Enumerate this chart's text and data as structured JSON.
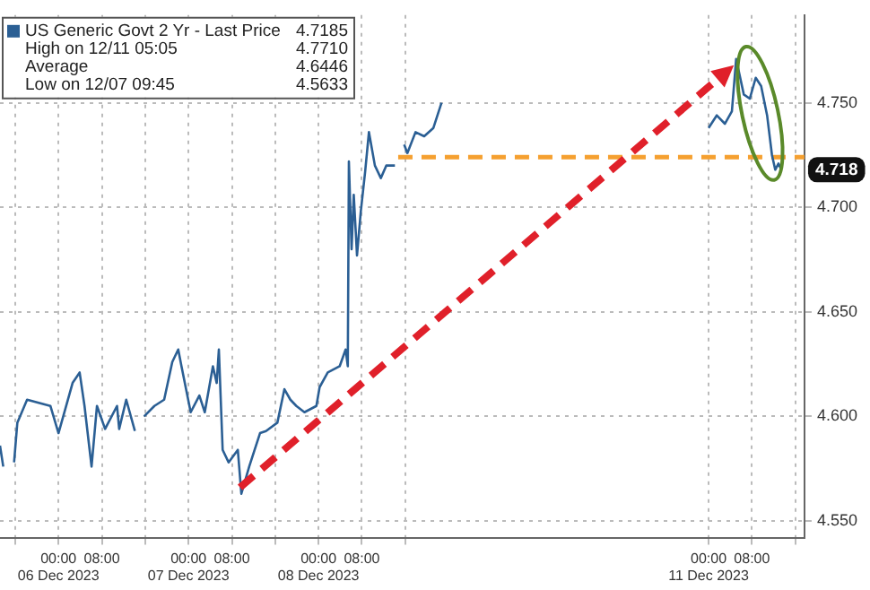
{
  "chart_data": {
    "type": "line",
    "legend": "top left",
    "grid": true,
    "xlim": [
      "2023-12-05T13:12",
      "2023-12-11T17:42"
    ],
    "ylim": [
      4.542,
      4.792
    ],
    "xticks": [
      {
        "value": "2023-12-05T16:00",
        "label": null
      },
      {
        "value": "2023-12-06T00:00",
        "label": "00:00\n06 Dec 2023"
      },
      {
        "value": "2023-12-06T08:00",
        "label": "08:00"
      },
      {
        "value": "2023-12-06T16:00",
        "label": null
      },
      {
        "value": "2023-12-07T00:00",
        "label": "00:00\n07 Dec 2023"
      },
      {
        "value": "2023-12-07T08:00",
        "label": "08:00"
      },
      {
        "value": "2023-12-07T16:00",
        "label": null
      },
      {
        "value": "2023-12-08T00:00",
        "label": "00:00\n08 Dec 2023"
      },
      {
        "value": "2023-12-08T08:00",
        "label": "08:00"
      },
      {
        "value": "2023-12-08T16:00",
        "label": null
      },
      {
        "value": "2023-12-11T00:00",
        "label": "00:00\n11 Dec 2023"
      },
      {
        "value": "2023-12-11T08:00",
        "label": "08:00"
      },
      {
        "value": "2023-12-11T16:00",
        "label": null
      }
    ],
    "yticks": [
      {
        "value": 4.55,
        "label": "4.550"
      },
      {
        "value": 4.6,
        "label": "4.600"
      },
      {
        "value": 4.65,
        "label": "4.650"
      },
      {
        "value": 4.7,
        "label": "4.700"
      },
      {
        "value": 4.75,
        "label": "4.750"
      }
    ],
    "series": [
      {
        "name": "US Generic Govt 2 Yr - Last Price",
        "color": "#2b5f94",
        "x": [
          "2023-12-05T13:12",
          "2023-12-05T13:48",
          "2023-12-05T14:48",
          "2023-12-05T15:48",
          "2023-12-05T16:24",
          "2023-12-05T18:12",
          "2023-12-05T22:30",
          "2023-12-06T00:00",
          "2023-12-06T02:36",
          "2023-12-06T03:54",
          "2023-12-06T04:48",
          "2023-12-06T06:06",
          "2023-12-06T07:06",
          "2023-12-06T08:36",
          "2023-12-06T10:48",
          "2023-12-06T11:12",
          "2023-12-06T12:30",
          "2023-12-06T14:06",
          "2023-12-06T15:00",
          "2023-12-06T15:48",
          "2023-12-06T17:42",
          "2023-12-06T19:30",
          "2023-12-06T21:00",
          "2023-12-06T22:06",
          "2023-12-06T22:42",
          "2023-12-07T00:24",
          "2023-12-07T02:00",
          "2023-12-07T03:00",
          "2023-12-07T04:30",
          "2023-12-07T05:12",
          "2023-12-07T05:36",
          "2023-12-07T06:18",
          "2023-12-07T07:24",
          "2023-12-07T09:06",
          "2023-12-07T09:45",
          "2023-12-07T11:12",
          "2023-12-07T13:12",
          "2023-12-07T14:18",
          "2023-12-07T16:24",
          "2023-12-07T17:42",
          "2023-12-07T18:48",
          "2023-12-07T19:54",
          "2023-12-07T21:24",
          "2023-12-07T23:36",
          "2023-12-08T00:12",
          "2023-12-08T01:42",
          "2023-12-08T03:54",
          "2023-12-08T05:00",
          "2023-12-08T05:24",
          "2023-12-08T05:36",
          "2023-12-08T06:06",
          "2023-12-08T06:30",
          "2023-12-08T07:06",
          "2023-12-08T07:48",
          "2023-12-08T08:36",
          "2023-12-08T09:18",
          "2023-12-08T10:24",
          "2023-12-08T11:30",
          "2023-12-08T12:30",
          "2023-12-08T14:06",
          "2023-12-08T15:00",
          "2023-12-08T15:48",
          "2023-12-08T16:24",
          "2023-12-08T17:54",
          "2023-12-08T19:30",
          "2023-12-08T21:12",
          "2023-12-08T22:42",
          "2023-12-09T12:00",
          "2023-12-11T00:00",
          "2023-12-11T01:30",
          "2023-12-11T03:00",
          "2023-12-11T04:18",
          "2023-12-11T05:05",
          "2023-12-11T06:30",
          "2023-12-11T07:36",
          "2023-12-11T08:42",
          "2023-12-11T09:42",
          "2023-12-11T10:48",
          "2023-12-11T11:42",
          "2023-12-11T12:18",
          "2023-12-11T12:54",
          "2023-12-11T13:24"
        ],
        "values": [
          4.586,
          4.576,
          null,
          4.578,
          4.597,
          4.608,
          4.605,
          4.592,
          4.616,
          4.621,
          4.605,
          4.576,
          4.605,
          4.594,
          4.605,
          4.594,
          4.608,
          4.593,
          null,
          4.6,
          4.605,
          4.608,
          4.626,
          4.632,
          4.624,
          4.602,
          4.61,
          4.602,
          4.624,
          4.616,
          4.632,
          4.584,
          4.578,
          4.584,
          4.563,
          4.576,
          4.592,
          4.593,
          4.597,
          4.613,
          4.608,
          4.605,
          4.602,
          4.605,
          4.614,
          4.621,
          4.624,
          4.632,
          4.624,
          4.722,
          4.68,
          4.706,
          4.677,
          4.698,
          4.717,
          4.736,
          4.72,
          4.714,
          4.72,
          4.72,
          null,
          4.73,
          4.726,
          4.736,
          4.734,
          4.738,
          4.75,
          null,
          4.738,
          4.744,
          4.74,
          4.746,
          4.771,
          4.754,
          4.752,
          4.762,
          4.758,
          4.744,
          4.725,
          4.718,
          4.721,
          4.718
        ]
      },
      {
        "type": "line",
        "color": "#f5a030",
        "line_style": "dashed",
        "x": [
          "2023-12-08T14:42",
          "2023-12-11T17:42"
        ],
        "values": [
          4.724,
          4.724
        ]
      }
    ],
    "annotations": [
      "4.7185",
      "High on 12/11 05:05",
      "4.7710",
      "Average",
      "4.6446",
      "Low on 12/07 09:45",
      "4.5633",
      {
        "text": "4.718",
        "y": 4.718
      }
    ]
  }
}
